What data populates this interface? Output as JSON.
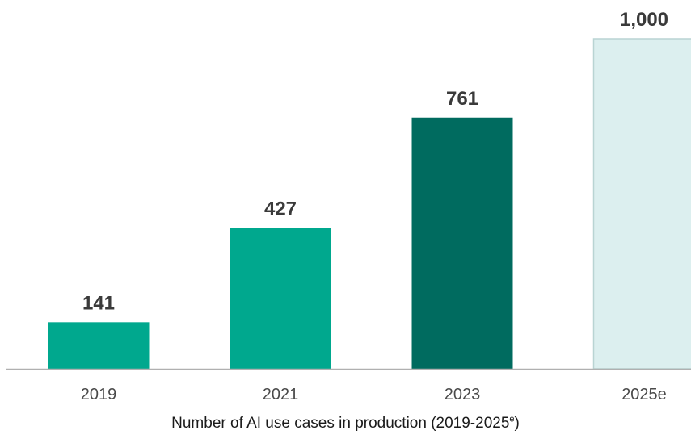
{
  "chart_data": {
    "type": "bar",
    "categories": [
      "2019",
      "2021",
      "2023",
      "2025e"
    ],
    "values": [
      141,
      427,
      761,
      1000
    ],
    "value_labels": [
      "141",
      "427",
      "761",
      "1,000"
    ],
    "bar_colors": [
      "#00a88e",
      "#00a88e",
      "#006b5f",
      "#dcefef"
    ],
    "bar_stroke": "#b9d4d3",
    "estimate_index": 3,
    "ylim": [
      0,
      1000
    ],
    "grid": false,
    "axis_color": "#b0b0b0",
    "title_main": "Number of AI use cases in production (2019-2025",
    "title_sup": "e",
    "title_end": ")"
  }
}
